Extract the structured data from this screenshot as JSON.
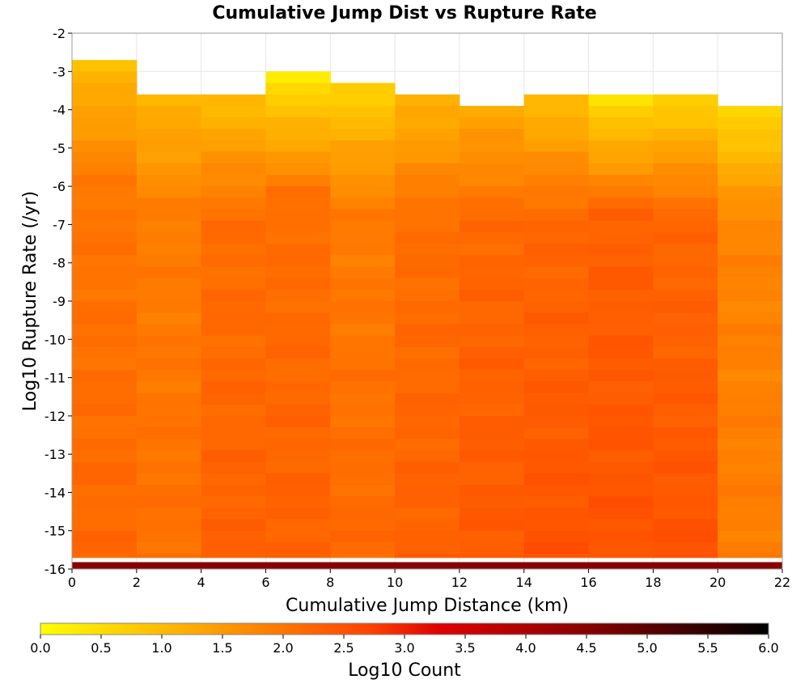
{
  "chart_data": {
    "type": "heatmap",
    "title": "Cumulative Jump Dist vs Rupture Rate",
    "xlabel": "Cumulative Jump Distance (km)",
    "ylabel": "Log10 Rupture Rate (/yr)",
    "xlim": [
      0,
      22
    ],
    "ylim": [
      -16,
      -2
    ],
    "x_ticks": [
      0,
      2,
      4,
      6,
      8,
      10,
      12,
      14,
      16,
      18,
      20,
      22
    ],
    "y_ticks": [
      -2,
      -3,
      -4,
      -5,
      -6,
      -7,
      -8,
      -9,
      -10,
      -11,
      -12,
      -13,
      -14,
      -15,
      -16
    ],
    "x_bin_width": 2,
    "y_bin_height": 0.3,
    "grid": true,
    "colorscale": {
      "label": "Log10 Count",
      "range": [
        0.0,
        6.0
      ],
      "ticks": [
        "0.0",
        "0.5",
        "1.0",
        "1.5",
        "2.0",
        "2.5",
        "3.0",
        "3.5",
        "4.0",
        "4.5",
        "5.0",
        "5.5",
        "6.0"
      ],
      "colors": [
        "#ffff00",
        "#ff9900",
        "#ff4400",
        "#dd0000",
        "#880000",
        "#000000"
      ]
    },
    "columns": [
      {
        "x": 0,
        "top": -2.7,
        "low": 1.0,
        "mid": 2.0,
        "high": 2.2
      },
      {
        "x": 2,
        "top": -3.6,
        "low": 1.1,
        "mid": 1.9,
        "high": 2.1
      },
      {
        "x": 4,
        "top": -3.6,
        "low": 1.0,
        "mid": 2.1,
        "high": 2.3
      },
      {
        "x": 6,
        "top": -3.0,
        "low": 0.4,
        "mid": 2.1,
        "high": 2.3
      },
      {
        "x": 8,
        "top": -3.3,
        "low": 0.7,
        "mid": 1.9,
        "high": 2.2
      },
      {
        "x": 10,
        "top": -3.6,
        "low": 1.1,
        "mid": 2.1,
        "high": 2.3
      },
      {
        "x": 12,
        "top": -3.9,
        "low": 1.3,
        "mid": 2.2,
        "high": 2.4
      },
      {
        "x": 14,
        "top": -3.6,
        "low": 1.0,
        "mid": 2.2,
        "high": 2.5
      },
      {
        "x": 16,
        "top": -3.6,
        "low": 0.5,
        "mid": 2.3,
        "high": 2.5
      },
      {
        "x": 18,
        "top": -3.6,
        "low": 0.7,
        "mid": 2.2,
        "high": 2.5
      },
      {
        "x": 20,
        "top": -3.9,
        "low": 0.6,
        "mid": 1.8,
        "high": 1.9
      }
    ],
    "bottom_row": {
      "y": -16,
      "value": 4.5
    }
  }
}
